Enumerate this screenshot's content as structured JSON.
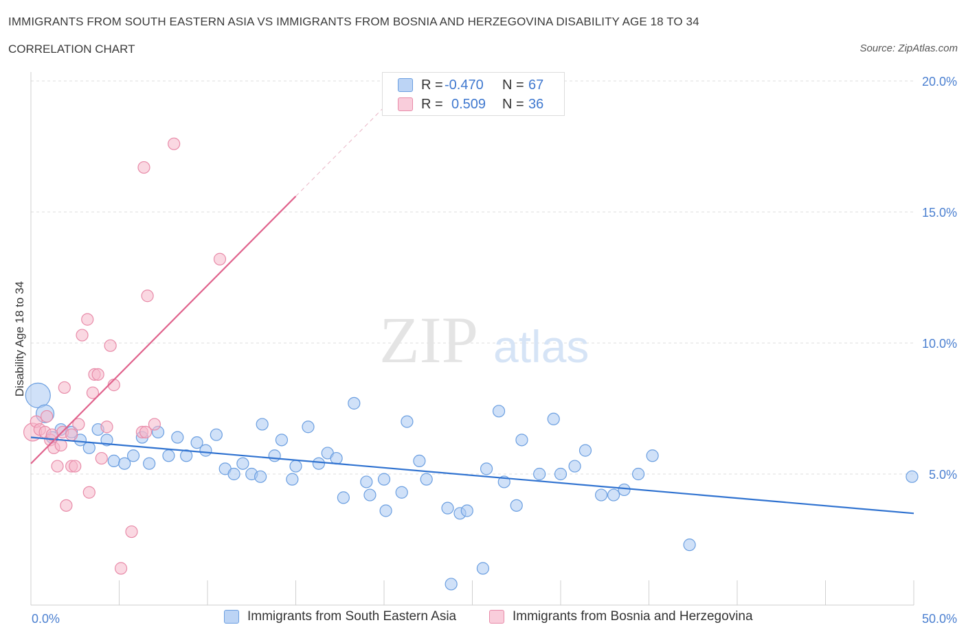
{
  "header": {
    "title": "IMMIGRANTS FROM SOUTH EASTERN ASIA VS IMMIGRANTS FROM BOSNIA AND HERZEGOVINA DISABILITY AGE 18 TO 34",
    "subtitle": "CORRELATION CHART",
    "source": "Source: ZipAtlas.com"
  },
  "watermark": {
    "zip": "ZIP",
    "atlas": "atlas"
  },
  "legend_top": {
    "rows": [
      {
        "r_label": "R =",
        "r_value": "-0.470",
        "n_label": "N =",
        "n_value": "67"
      },
      {
        "r_label": "R =",
        "r_value": "0.509",
        "n_label": "N =",
        "n_value": "36"
      }
    ]
  },
  "legend_bottom": {
    "series1": "Immigrants from South Eastern Asia",
    "series2": "Immigrants from Bosnia and Herzegovina"
  },
  "colors": {
    "blue_fill": "#aac8f2",
    "blue_stroke": "#6a9ee0",
    "blue_line": "#2f72d0",
    "pink_fill": "#f5b8cb",
    "pink_stroke": "#e88aa8",
    "pink_line": "#e0628c",
    "axis_text": "#4a7fd0",
    "grid": "#dddddd"
  },
  "chart_data": {
    "type": "scatter",
    "title": "IMMIGRANTS FROM SOUTH EASTERN ASIA VS IMMIGRANTS FROM BOSNIA AND HERZEGOVINA DISABILITY AGE 18 TO 34",
    "xlabel": "",
    "ylabel": "Disability Age 18 to 34",
    "xlim": [
      0,
      50
    ],
    "ylim": [
      0,
      20
    ],
    "x_tick_labels": [
      "0.0%",
      "50.0%"
    ],
    "y_ticks": [
      5,
      10,
      15,
      20
    ],
    "y_tick_labels": [
      "5.0%",
      "10.0%",
      "15.0%",
      "20.0%"
    ],
    "grid": true,
    "legend_position": "bottom",
    "series": [
      {
        "name": "Immigrants from South Eastern Asia",
        "color": "#6a9ee0",
        "trend": {
          "x": [
            0,
            50
          ],
          "y": [
            6.4,
            3.5
          ]
        },
        "points": [
          {
            "x": 0.4,
            "y": 8.0,
            "big": 2
          },
          {
            "x": 0.8,
            "y": 7.3,
            "big": 1
          },
          {
            "x": 1.2,
            "y": 6.4
          },
          {
            "x": 1.7,
            "y": 6.7
          },
          {
            "x": 2.3,
            "y": 6.6
          },
          {
            "x": 2.8,
            "y": 6.3
          },
          {
            "x": 3.3,
            "y": 6.0
          },
          {
            "x": 3.8,
            "y": 6.7
          },
          {
            "x": 4.3,
            "y": 6.3
          },
          {
            "x": 4.7,
            "y": 5.5
          },
          {
            "x": 5.3,
            "y": 5.4
          },
          {
            "x": 5.8,
            "y": 5.7
          },
          {
            "x": 6.3,
            "y": 6.4
          },
          {
            "x": 6.7,
            "y": 5.4
          },
          {
            "x": 7.2,
            "y": 6.6
          },
          {
            "x": 7.8,
            "y": 5.7
          },
          {
            "x": 8.3,
            "y": 6.4
          },
          {
            "x": 8.8,
            "y": 5.7
          },
          {
            "x": 9.4,
            "y": 6.2
          },
          {
            "x": 9.9,
            "y": 5.9
          },
          {
            "x": 10.5,
            "y": 6.5
          },
          {
            "x": 11.0,
            "y": 5.2
          },
          {
            "x": 11.5,
            "y": 5.0
          },
          {
            "x": 12.0,
            "y": 5.4
          },
          {
            "x": 12.5,
            "y": 5.0
          },
          {
            "x": 13.0,
            "y": 4.9
          },
          {
            "x": 13.1,
            "y": 6.9
          },
          {
            "x": 13.8,
            "y": 5.7
          },
          {
            "x": 14.2,
            "y": 6.3
          },
          {
            "x": 14.8,
            "y": 4.8
          },
          {
            "x": 15.0,
            "y": 5.3
          },
          {
            "x": 15.7,
            "y": 6.8
          },
          {
            "x": 16.3,
            "y": 5.4
          },
          {
            "x": 16.8,
            "y": 5.8
          },
          {
            "x": 17.3,
            "y": 5.6
          },
          {
            "x": 17.7,
            "y": 4.1
          },
          {
            "x": 18.3,
            "y": 7.7
          },
          {
            "x": 19.0,
            "y": 4.7
          },
          {
            "x": 19.2,
            "y": 4.2
          },
          {
            "x": 20.0,
            "y": 4.8
          },
          {
            "x": 20.1,
            "y": 3.6
          },
          {
            "x": 21.0,
            "y": 4.3
          },
          {
            "x": 21.3,
            "y": 7.0
          },
          {
            "x": 22.0,
            "y": 5.5
          },
          {
            "x": 22.4,
            "y": 4.8
          },
          {
            "x": 23.6,
            "y": 3.7
          },
          {
            "x": 23.8,
            "y": 0.8
          },
          {
            "x": 24.3,
            "y": 3.5
          },
          {
            "x": 24.7,
            "y": 3.6
          },
          {
            "x": 25.6,
            "y": 1.4
          },
          {
            "x": 25.8,
            "y": 5.2
          },
          {
            "x": 26.5,
            "y": 7.4
          },
          {
            "x": 26.8,
            "y": 4.7
          },
          {
            "x": 27.5,
            "y": 3.8
          },
          {
            "x": 27.8,
            "y": 6.3
          },
          {
            "x": 28.8,
            "y": 5.0
          },
          {
            "x": 29.6,
            "y": 7.1
          },
          {
            "x": 30.0,
            "y": 5.0
          },
          {
            "x": 30.8,
            "y": 5.3
          },
          {
            "x": 31.4,
            "y": 5.9
          },
          {
            "x": 32.3,
            "y": 4.2
          },
          {
            "x": 33.0,
            "y": 4.2
          },
          {
            "x": 33.6,
            "y": 4.4
          },
          {
            "x": 34.4,
            "y": 5.0
          },
          {
            "x": 35.2,
            "y": 5.7
          },
          {
            "x": 37.3,
            "y": 2.3
          },
          {
            "x": 49.9,
            "y": 4.9
          }
        ]
      },
      {
        "name": "Immigrants from Bosnia and Herzegovina",
        "color": "#e88aa8",
        "trend": {
          "x": [
            0,
            15
          ],
          "y": [
            5.4,
            15.6
          ],
          "dashed_extension": {
            "x": [
              15,
              20
            ],
            "y": [
              15.6,
              19.0
            ]
          }
        },
        "points": [
          {
            "x": 0.1,
            "y": 6.6,
            "big": 1
          },
          {
            "x": 0.3,
            "y": 7.0
          },
          {
            "x": 0.5,
            "y": 6.7
          },
          {
            "x": 0.8,
            "y": 6.6
          },
          {
            "x": 0.9,
            "y": 7.2
          },
          {
            "x": 1.1,
            "y": 6.3
          },
          {
            "x": 1.3,
            "y": 6.0
          },
          {
            "x": 1.5,
            "y": 5.3
          },
          {
            "x": 1.7,
            "y": 6.1
          },
          {
            "x": 1.8,
            "y": 6.6
          },
          {
            "x": 1.9,
            "y": 8.3
          },
          {
            "x": 2.0,
            "y": 3.8
          },
          {
            "x": 2.3,
            "y": 6.5
          },
          {
            "x": 2.3,
            "y": 5.3
          },
          {
            "x": 2.5,
            "y": 5.3
          },
          {
            "x": 2.7,
            "y": 6.9
          },
          {
            "x": 2.9,
            "y": 10.3
          },
          {
            "x": 3.2,
            "y": 10.9
          },
          {
            "x": 3.3,
            "y": 4.3
          },
          {
            "x": 3.5,
            "y": 8.1
          },
          {
            "x": 3.6,
            "y": 8.8
          },
          {
            "x": 3.8,
            "y": 8.8
          },
          {
            "x": 4.0,
            "y": 5.6
          },
          {
            "x": 4.3,
            "y": 6.8
          },
          {
            "x": 4.5,
            "y": 9.9
          },
          {
            "x": 4.7,
            "y": 8.4
          },
          {
            "x": 5.1,
            "y": 1.4
          },
          {
            "x": 5.7,
            "y": 2.8
          },
          {
            "x": 6.3,
            "y": 6.6
          },
          {
            "x": 6.4,
            "y": 16.7
          },
          {
            "x": 6.5,
            "y": 6.6
          },
          {
            "x": 6.6,
            "y": 11.8
          },
          {
            "x": 7.0,
            "y": 6.9
          },
          {
            "x": 8.1,
            "y": 17.6
          },
          {
            "x": 10.7,
            "y": 13.2
          },
          {
            "x": 1.2,
            "y": 6.5
          }
        ]
      }
    ]
  }
}
